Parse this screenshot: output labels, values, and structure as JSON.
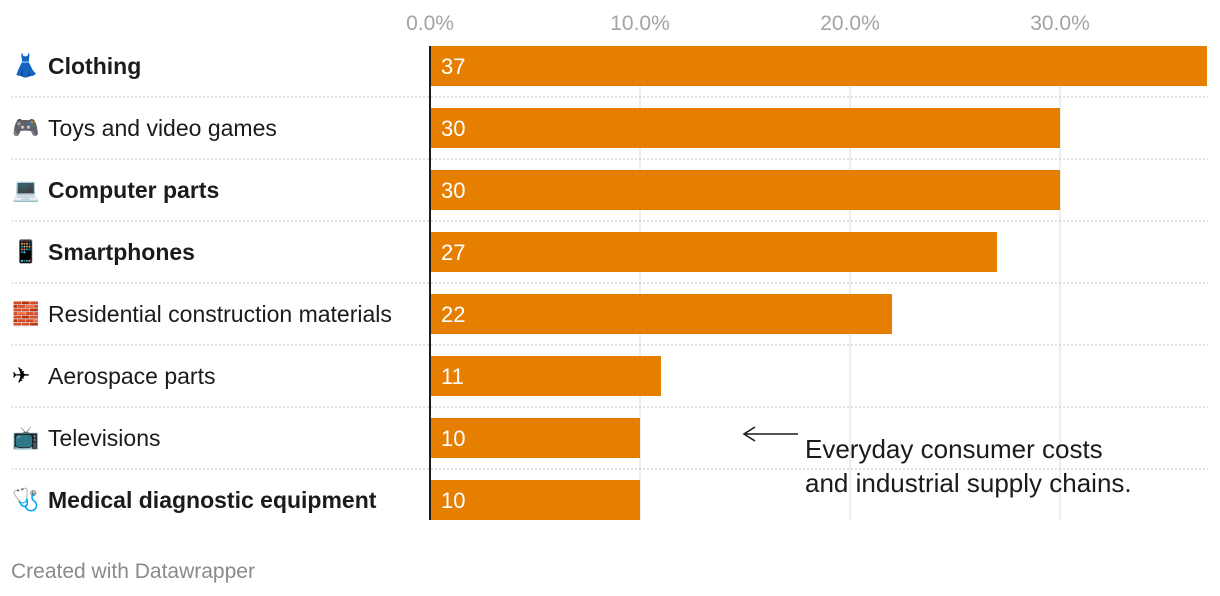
{
  "chart_data": {
    "type": "bar",
    "orientation": "horizontal",
    "categories": [
      "Clothing",
      "Toys and video games",
      "Computer parts",
      "Smartphones",
      "Residential construction materials",
      "Aerospace parts",
      "Televisions",
      "Medical diagnostic equipment"
    ],
    "bold": [
      true,
      false,
      true,
      true,
      false,
      false,
      false,
      true
    ],
    "icons": [
      "dress-icon",
      "gamepad-icon",
      "laptop-icon",
      "smartphone-icon",
      "bricks-icon",
      "airplane-icon",
      "television-icon",
      "stethoscope-icon"
    ],
    "values": [
      37,
      30,
      30,
      27,
      22,
      11,
      10,
      10
    ],
    "value_labels": [
      "37",
      "30",
      "30",
      "27",
      "22",
      "11",
      "10",
      "10"
    ],
    "x_ticks": [
      0,
      10,
      20,
      30
    ],
    "x_tick_labels": [
      "0.0%",
      "10.0%",
      "20.0%",
      "30.0%"
    ],
    "xlim": [
      0,
      37
    ],
    "grid": true,
    "bar_color": "#e67e00",
    "annotation": {
      "lines": [
        "Everyday consumer costs",
        "and industrial supply chains."
      ],
      "arrow": "left"
    }
  },
  "footer": "Created with Datawrapper"
}
